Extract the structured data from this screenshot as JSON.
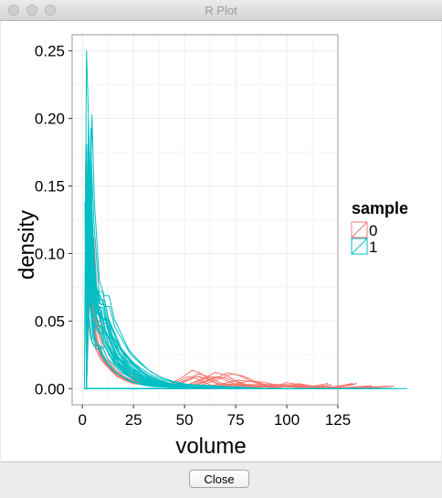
{
  "window": {
    "title": "R Plot"
  },
  "buttons": {
    "close_label": "Close"
  },
  "colors": {
    "sample0": "#f8766d",
    "sample1": "#00bfc4",
    "grid": "#ebebeb",
    "panel_border": "#999999"
  },
  "chart_data": {
    "type": "line",
    "xlabel": "volume",
    "ylabel": "density",
    "xlim": [
      -5,
      125
    ],
    "ylim": [
      -0.012,
      0.262
    ],
    "xticks": [
      "0",
      "25",
      "50",
      "75",
      "100",
      "125"
    ],
    "yticks": [
      "0.00",
      "0.05",
      "0.10",
      "0.15",
      "0.20",
      "0.25"
    ],
    "xtick_values": [
      0,
      25,
      50,
      75,
      100,
      125
    ],
    "ytick_values": [
      0,
      0.05,
      0.1,
      0.15,
      0.2,
      0.25
    ],
    "grid": true,
    "legend": {
      "title": "sample",
      "position": "right",
      "entries": [
        "0",
        "1"
      ]
    },
    "series": [
      {
        "name": "0",
        "color": "#f8766d",
        "curves": 12,
        "x": [
          1,
          2,
          3,
          4,
          6,
          8,
          10,
          13,
          16,
          20,
          25,
          30,
          40,
          50,
          55,
          60,
          65,
          70,
          75,
          80,
          90,
          100,
          110,
          118,
          120
        ],
        "y": [
          0,
          0.0,
          0.165,
          0.12,
          0.06,
          0.045,
          0.035,
          0.025,
          0.018,
          0.012,
          0.008,
          0.005,
          0.003,
          0.002,
          0.005,
          0.008,
          0.012,
          0.01,
          0.006,
          0.003,
          0.003,
          0.002,
          0.001,
          0.003,
          0.004
        ]
      },
      {
        "name": "1",
        "color": "#00bfc4",
        "curves": 30,
        "x": [
          1,
          2,
          3,
          4,
          6,
          8,
          10,
          12,
          15,
          18,
          22,
          26,
          30,
          35,
          40,
          50,
          60,
          70,
          120
        ],
        "y": [
          0,
          0.25,
          0.2,
          0.12,
          0.07,
          0.06,
          0.06,
          0.045,
          0.035,
          0.025,
          0.018,
          0.012,
          0.008,
          0.005,
          0.003,
          0.002,
          0.001,
          0.0,
          0.0
        ]
      }
    ]
  }
}
